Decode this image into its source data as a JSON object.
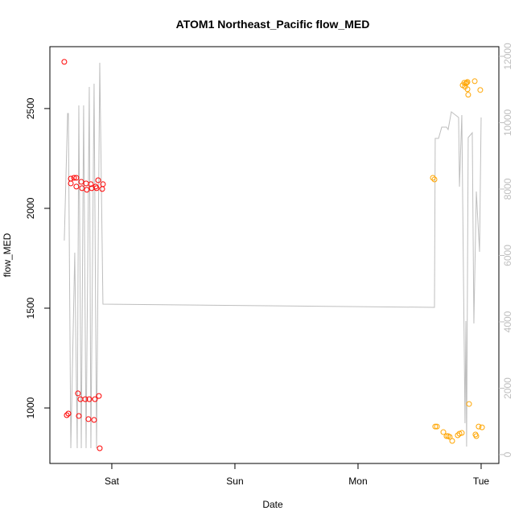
{
  "chart_data": {
    "type": "scatter",
    "title": "ATOM1 Northeast_Pacific flow_MED",
    "x_label": "Date",
    "y_label": "flow_MED",
    "xlim": [
      -0.503,
      3.144
    ],
    "xticks": [
      {
        "value": 0,
        "label": "Sat"
      },
      {
        "value": 1,
        "label": "Sun"
      },
      {
        "value": 2,
        "label": "Mon"
      },
      {
        "value": 3,
        "label": "Tue"
      }
    ],
    "ylim": [
      722,
      2810
    ],
    "yticks": [
      1000,
      1500,
      2000,
      2500
    ],
    "y2lim": [
      -267,
      12290
    ],
    "y2ticks": [
      0,
      2000,
      4000,
      6000,
      8000,
      10000,
      12000
    ],
    "y2_color": "#bebebe",
    "series": [
      {
        "type": "points",
        "color": "#ff0000",
        "x": [
          -0.386,
          -0.366,
          -0.353,
          -0.333,
          -0.333,
          -0.307,
          -0.288,
          -0.288,
          -0.275,
          -0.268,
          -0.255,
          -0.248,
          -0.242,
          -0.216,
          -0.209,
          -0.203,
          -0.19,
          -0.183,
          -0.17,
          -0.163,
          -0.144,
          -0.137,
          -0.131,
          -0.124,
          -0.111,
          -0.105,
          -0.098,
          -0.078,
          -0.072
        ],
        "values": [
          2734,
          964,
          972,
          2149,
          2125,
          2153,
          2153,
          2109,
          1073,
          960,
          1044,
          2133,
          2101,
          1044,
          2125,
          2093,
          944,
          1044,
          2121,
          2101,
          940,
          1044,
          2109,
          2101,
          2141,
          1060,
          798,
          2097,
          2121
        ]
      },
      {
        "type": "points",
        "color": "#ffa500",
        "x": [
          2.608,
          2.621,
          2.627,
          2.641,
          2.693,
          2.719,
          2.732,
          2.745,
          2.765,
          2.81,
          2.824,
          2.843,
          2.85,
          2.863,
          2.869,
          2.876,
          2.882,
          2.889,
          2.889,
          2.895,
          2.902,
          2.948,
          2.954,
          2.961,
          2.98,
          2.993,
          3.007
        ],
        "values": [
          2153,
          2145,
          907,
          907,
          879,
          859,
          859,
          855,
          835,
          863,
          871,
          875,
          2617,
          2629,
          2609,
          2625,
          2629,
          2633,
          2597,
          2569,
          1020,
          2637,
          867,
          859,
          907,
          2593,
          903
        ]
      },
      {
        "type": "line",
        "color": "#bebebe",
        "axis": "y2",
        "x": [
          -0.386,
          -0.359,
          -0.353,
          -0.333,
          -0.301,
          -0.281,
          -0.268,
          -0.248,
          -0.229,
          -0.209,
          -0.183,
          -0.17,
          -0.144,
          -0.124,
          -0.098,
          -0.072,
          2.621,
          2.627,
          2.654,
          2.68,
          2.719,
          2.732,
          2.758,
          2.817,
          2.824,
          2.843,
          2.869,
          2.876,
          2.882,
          2.895,
          2.928,
          2.941,
          2.961,
          2.987,
          3.0
        ],
        "values": [
          6448,
          10278,
          10278,
          194,
          6084,
          194,
          10520,
          194,
          10520,
          194,
          11078,
          194,
          11175,
          194,
          11805,
          4533,
          4436,
          9526,
          9526,
          9866,
          9866,
          9793,
          10326,
          10157,
          8072,
          10229,
          945,
          4024,
          242,
          9551,
          9696,
          3951,
          7926,
          6108,
          10157
        ]
      }
    ]
  }
}
